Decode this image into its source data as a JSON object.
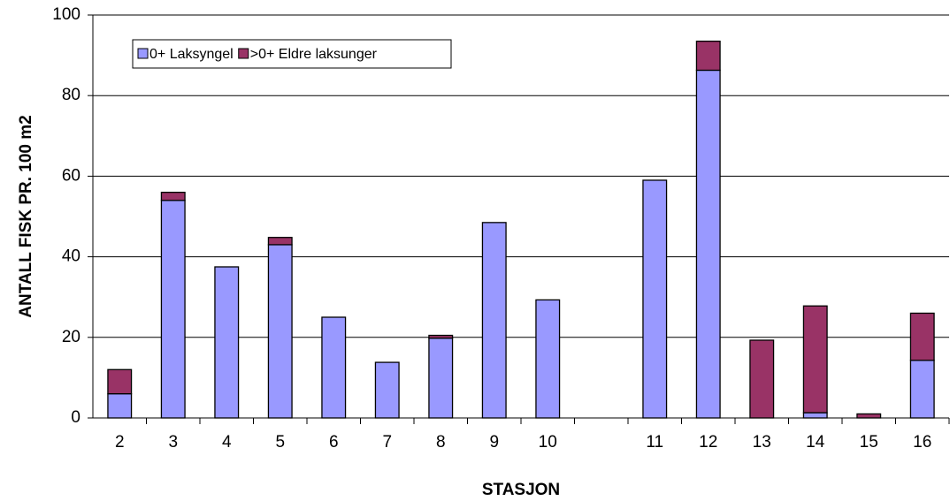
{
  "chart_data": {
    "type": "stacked-bar",
    "x_label": "STASJON",
    "y_label": "ANTALL FISK PR. 100 m2",
    "categories": [
      "2",
      "3",
      "4",
      "5",
      "6",
      "7",
      "8",
      "9",
      "10",
      null,
      "11",
      "12",
      "13",
      "14",
      "15",
      "16"
    ],
    "series": [
      {
        "name": "0+ Laksyngel",
        "color": "#9999ff",
        "values": [
          6,
          54,
          37.5,
          43,
          25,
          13.8,
          19.8,
          48.5,
          29.3,
          null,
          59,
          86.3,
          0,
          1.3,
          0,
          14.3
        ]
      },
      {
        "name": ">0+ Eldre laksunger",
        "color": "#993366",
        "values": [
          6,
          2,
          0,
          1.8,
          0,
          0,
          0.7,
          0,
          0,
          null,
          0,
          7.2,
          19.3,
          26.5,
          1,
          11.7
        ]
      }
    ],
    "ylim": [
      0,
      100
    ],
    "yticks": [
      0,
      20,
      40,
      60,
      80,
      100
    ],
    "grid": true,
    "legend": "upper left"
  }
}
